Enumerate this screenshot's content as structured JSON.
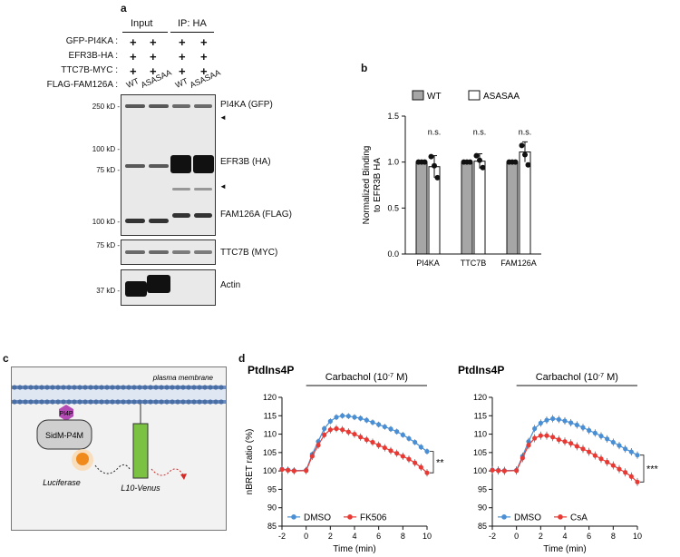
{
  "panels": {
    "a": "a",
    "b": "b",
    "c": "c",
    "d": "d"
  },
  "blot": {
    "col_groups": [
      "Input",
      "IP: HA"
    ],
    "row_labels": [
      "GFP-PI4KA :",
      "EFR3B-HA :",
      "TTC7B-MYC :",
      "FLAG-FAM126A :"
    ],
    "plus": "+",
    "lane_labels": [
      "WT",
      "ASASAA",
      "WT",
      "ASASAA"
    ],
    "mw_markers": [
      "250 kD -",
      "100 kD -",
      "75 kD -",
      "100 kD -",
      "75 kD -",
      "37 kD -"
    ],
    "band_labels": [
      "PI4KA (GFP)",
      "EFR3B (HA)",
      "FAM126A (FLAG)",
      "TTC7B (MYC)",
      "Actin"
    ],
    "arrow": "◄"
  },
  "chart_b": {
    "chart_data": {
      "type": "bar",
      "categories": [
        "PI4KA",
        "TTC7B",
        "FAM126A"
      ],
      "series": [
        {
          "name": "WT",
          "values": [
            1.0,
            1.0,
            1.0
          ],
          "errors": [
            0,
            0,
            0
          ],
          "points": [
            [
              1.0,
              1.0,
              1.0
            ],
            [
              1.0,
              1.0,
              1.0
            ],
            [
              1.0,
              1.0,
              1.0
            ]
          ]
        },
        {
          "name": "ASASAA",
          "values": [
            0.95,
            1.01,
            1.11
          ],
          "errors": [
            0.12,
            0.08,
            0.11
          ],
          "points": [
            [
              1.06,
              0.96,
              0.83
            ],
            [
              1.07,
              1.02,
              0.94
            ],
            [
              1.18,
              1.08,
              0.97
            ]
          ]
        }
      ],
      "ylabel": "Normalized Binding\nto EFR3B HA",
      "ylim": [
        0,
        1.5
      ],
      "yticks": [
        "0.0",
        "0.5",
        "1.0",
        "1.5"
      ],
      "annotations": [
        "n.s.",
        "n.s.",
        "n.s."
      ],
      "colors": {
        "WT": "#a6a6a6",
        "ASASAA": "#ffffff"
      },
      "legend": "top"
    }
  },
  "schematic": {
    "membrane": "plasma membrane",
    "pi4p": "PI4P",
    "sensor": "SidM-P4M",
    "luciferase": "Luciferase",
    "venus": "L10-Venus",
    "colors": {
      "pi4p": "#b44bb4",
      "luciferase": "#f08a1c",
      "venus": "#7cc242",
      "membrane": "#4a6fa5"
    }
  },
  "charts_d": [
    {
      "title": "PtdIns4P",
      "stim_label": "Carbachol (10",
      "stim_exp": "-7",
      "stim_unit": " M)",
      "significance": "**",
      "chart_data": {
        "type": "line",
        "xlabel": "Time (min)",
        "ylabel": "nBRET ratio (%)",
        "xlim": [
          -2,
          10
        ],
        "ylim": [
          85,
          120
        ],
        "xticks": [
          "-2",
          "0",
          "2",
          "4",
          "6",
          "8",
          "10"
        ],
        "yticks": [
          "85",
          "90",
          "95",
          "100",
          "105",
          "110",
          "115",
          "120"
        ],
        "x": [
          -2,
          -1.5,
          -1,
          0,
          0.5,
          1,
          1.5,
          2,
          2.5,
          3,
          3.5,
          4,
          4.5,
          5,
          5.5,
          6,
          6.5,
          7,
          7.5,
          8,
          8.5,
          9,
          9.5,
          10
        ],
        "series": [
          {
            "name": "DMSO",
            "color": "#4a8fd4",
            "values": [
              100.5,
              100.3,
              100.1,
              100.2,
              104.5,
              108,
              111.5,
              113.5,
              114.6,
              115,
              114.9,
              114.6,
              114.3,
              113.8,
              113.2,
              112.6,
              112,
              111.4,
              110.7,
              109.8,
              108.8,
              107.8,
              106.5,
              105.3
            ],
            "error": 0.8
          },
          {
            "name": "FK506",
            "color": "#e83a35",
            "values": [
              100.4,
              100.2,
              100.0,
              100.1,
              104,
              107,
              109.8,
              111.2,
              111.5,
              111.2,
              110.6,
              110,
              109.2,
              108.5,
              107.8,
              107,
              106.3,
              105.5,
              104.8,
              104,
              103.2,
              102.2,
              101,
              99.5
            ],
            "error": 1.0
          }
        ]
      }
    },
    {
      "title": "PtdIns4P",
      "stim_label": "Carbachol (10",
      "stim_exp": "-7",
      "stim_unit": " M)",
      "significance": "***",
      "chart_data": {
        "type": "line",
        "xlabel": "Time (min)",
        "ylabel": "",
        "xlim": [
          -2,
          10
        ],
        "ylim": [
          85,
          120
        ],
        "xticks": [
          "-2",
          "0",
          "2",
          "4",
          "6",
          "8",
          "10"
        ],
        "yticks": [
          "85",
          "90",
          "95",
          "100",
          "105",
          "110",
          "115",
          "120"
        ],
        "x": [
          -2,
          -1.5,
          -1,
          0,
          0.5,
          1,
          1.5,
          2,
          2.5,
          3,
          3.5,
          4,
          4.5,
          5,
          5.5,
          6,
          6.5,
          7,
          7.5,
          8,
          8.5,
          9,
          9.5,
          10
        ],
        "series": [
          {
            "name": "DMSO",
            "color": "#4a8fd4",
            "values": [
              100.3,
              100.2,
              100.1,
              100.2,
              104,
              108,
              111.5,
              113,
              113.8,
              114.2,
              114,
              113.6,
              113.1,
              112.5,
              111.8,
              111,
              110.3,
              109.5,
              108.7,
              107.8,
              106.9,
              106,
              105.2,
              104.3
            ],
            "error": 1.0
          },
          {
            "name": "CsA",
            "color": "#e83a35",
            "values": [
              100.2,
              100.1,
              100.0,
              100.1,
              103.5,
              107,
              108.9,
              109.6,
              109.6,
              109.2,
              108.5,
              108,
              107.5,
              106.7,
              106,
              105.2,
              104.2,
              103.3,
              102.4,
              101.5,
              100.5,
              99.6,
              98.5,
              97
            ],
            "error": 1.1
          }
        ]
      }
    }
  ]
}
